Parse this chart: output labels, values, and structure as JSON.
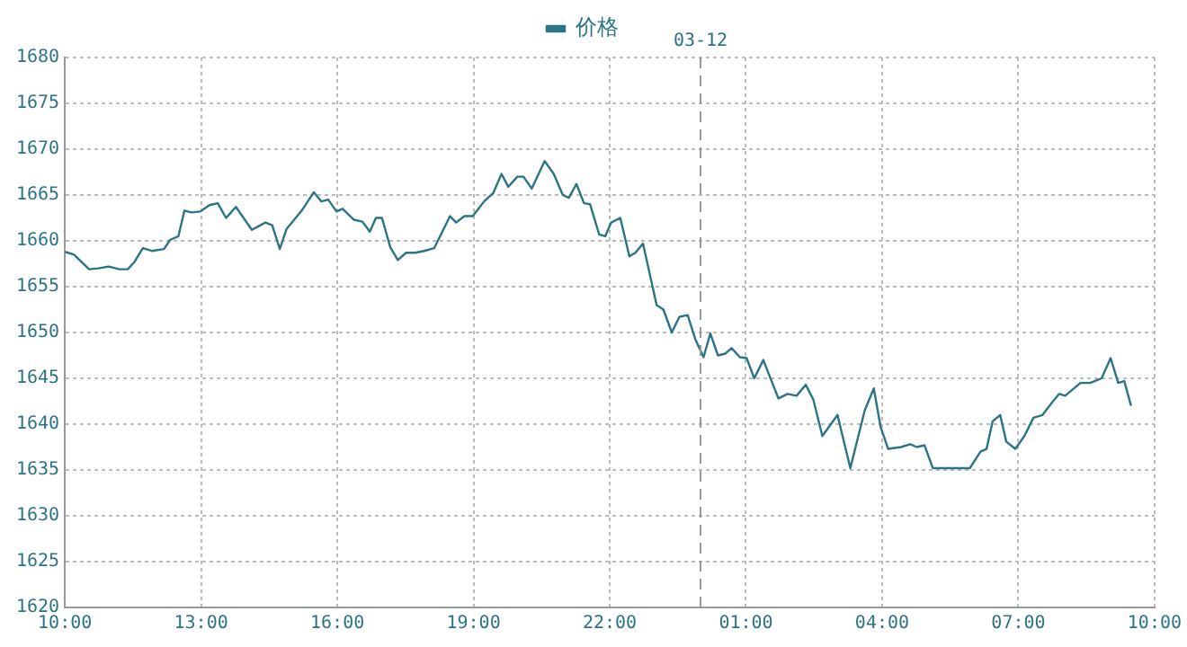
{
  "chart_data": {
    "type": "line",
    "legend": "top",
    "grid": true,
    "marker": "none",
    "line_style": "solid",
    "xlim": [
      "--03-11T10:00",
      "--03-12T10:00"
    ],
    "xticks": [
      {
        "value": "--03-11T10:00",
        "label": "10:00"
      },
      {
        "value": "--03-11T13:00",
        "label": "13:00"
      },
      {
        "value": "--03-11T16:00",
        "label": "16:00"
      },
      {
        "value": "--03-11T19:00",
        "label": "19:00"
      },
      {
        "value": "--03-11T22:00",
        "label": "22:00"
      },
      {
        "value": "--03-12T01:00",
        "label": "01:00"
      },
      {
        "value": "--03-12T04:00",
        "label": "04:00"
      },
      {
        "value": "--03-12T07:00",
        "label": "07:00"
      },
      {
        "value": "--03-12T10:00",
        "label": "10:00"
      }
    ],
    "ylim": [
      1620,
      1680
    ],
    "yticks": [
      1620,
      1625,
      1630,
      1635,
      1640,
      1645,
      1650,
      1655,
      1660,
      1665,
      1670,
      1675,
      1680
    ],
    "ref_lines": [
      {
        "axis": "x",
        "value": "--03-12",
        "label": "03-12",
        "color": "#999999",
        "line_style": "dashed"
      }
    ],
    "series": [
      {
        "name": "价格",
        "color": "#2b7488",
        "x": [
          "--03-11T10:00",
          "--03-11T10:12",
          "--03-11T10:32",
          "--03-11T10:44",
          "--03-11T10:58",
          "--03-11T11:12",
          "--03-11T11:23",
          "--03-11T11:32",
          "--03-11T11:43",
          "--03-11T11:55",
          "--03-11T12:11",
          "--03-11T12:19",
          "--03-11T12:30",
          "--03-11T12:38",
          "--03-11T12:47",
          "--03-11T12:59",
          "--03-11T13:11",
          "--03-11T13:22",
          "--03-11T13:33",
          "--03-11T13:46",
          "--03-11T14:07",
          "--03-11T14:25",
          "--03-11T14:34",
          "--03-11T14:44",
          "--03-11T14:53",
          "--03-11T15:13",
          "--03-11T15:29",
          "--03-11T15:39",
          "--03-11T15:48",
          "--03-11T15:59",
          "--03-11T16:07",
          "--03-11T16:22",
          "--03-11T16:33",
          "--03-11T16:43",
          "--03-11T16:51",
          "--03-11T16:59",
          "--03-11T17:10",
          "--03-11T17:20",
          "--03-11T17:31",
          "--03-11T17:43",
          "--03-11T17:55",
          "--03-11T18:08",
          "--03-11T18:29",
          "--03-11T18:37",
          "--03-11T18:48",
          "--03-11T18:59",
          "--03-11T19:14",
          "--03-11T19:26",
          "--03-11T19:37",
          "--03-11T19:46",
          "--03-11T19:58",
          "--03-11T20:06",
          "--03-11T20:17",
          "--03-11T20:34",
          "--03-11T20:46",
          "--03-11T20:58",
          "--03-11T21:06",
          "--03-11T21:16",
          "--03-11T21:26",
          "--03-11T21:34",
          "--03-11T21:46",
          "--03-11T21:54",
          "--03-11T22:02",
          "--03-11T22:14",
          "--03-11T22:26",
          "--03-11T22:34",
          "--03-11T22:44",
          "--03-11T23:02",
          "--03-11T23:11",
          "--03-11T23:22",
          "--03-11T23:32",
          "--03-11T23:43",
          "--03-11T23:53",
          "--03-12T00:04",
          "--03-12T00:13",
          "--03-12T00:23",
          "--03-12T00:33",
          "--03-12T00:41",
          "--03-12T00:52",
          "--03-12T01:01",
          "--03-12T01:11",
          "--03-12T01:23",
          "--03-12T01:31",
          "--03-12T01:43",
          "--03-12T01:55",
          "--03-12T02:07",
          "--03-12T02:19",
          "--03-12T02:29",
          "--03-12T02:41",
          "--03-12T03:01",
          "--03-12T03:18",
          "--03-12T03:37",
          "--03-12T03:49",
          "--03-12T03:58",
          "--03-12T04:08",
          "--03-12T04:25",
          "--03-12T04:37",
          "--03-12T04:46",
          "--03-12T04:56",
          "--03-12T05:07",
          "--03-12T05:56",
          "--03-12T06:10",
          "--03-12T06:18",
          "--03-12T06:26",
          "--03-12T06:36",
          "--03-12T06:44",
          "--03-12T06:56",
          "--03-12T07:08",
          "--03-12T07:20",
          "--03-12T07:32",
          "--03-12T07:44",
          "--03-12T07:54",
          "--03-12T08:02",
          "--03-12T08:22",
          "--03-12T08:35",
          "--03-12T08:50",
          "--03-12T09:02",
          "--03-12T09:12",
          "--03-12T09:20",
          "--03-12T09:29"
        ],
        "values": [
          1658.8,
          1658.5,
          1656.9,
          1657,
          1657.2,
          1656.9,
          1656.9,
          1657.7,
          1659.2,
          1658.9,
          1659.1,
          1660.1,
          1660.5,
          1663.3,
          1663.1,
          1663.2,
          1663.9,
          1664.1,
          1662.5,
          1663.7,
          1661.2,
          1662,
          1661.7,
          1659.1,
          1661.3,
          1663.3,
          1665.3,
          1664.3,
          1664.5,
          1663.2,
          1663.5,
          1662.3,
          1662.1,
          1661,
          1662.5,
          1662.5,
          1659.3,
          1657.9,
          1658.7,
          1658.7,
          1658.9,
          1659.2,
          1662.7,
          1662,
          1662.7,
          1662.7,
          1664.3,
          1665.2,
          1667.3,
          1665.9,
          1667,
          1667,
          1665.7,
          1668.7,
          1667.3,
          1665,
          1664.7,
          1666.2,
          1664.1,
          1664,
          1660.7,
          1660.5,
          1662,
          1662.5,
          1658.3,
          1658.7,
          1659.7,
          1653,
          1652.5,
          1650,
          1651.7,
          1651.9,
          1649.3,
          1647.3,
          1649.9,
          1647.5,
          1647.7,
          1648.3,
          1647.3,
          1647.2,
          1645,
          1647,
          1645.3,
          1642.8,
          1643.3,
          1643.1,
          1644.3,
          1642.7,
          1638.7,
          1641,
          1635.2,
          1641.5,
          1643.9,
          1639.7,
          1637.3,
          1637.5,
          1637.8,
          1637.5,
          1637.7,
          1635.2,
          1635.2,
          1637,
          1637.3,
          1640.3,
          1641,
          1638.1,
          1637.3,
          1638.7,
          1640.7,
          1641,
          1642.3,
          1643.3,
          1643.1,
          1644.5,
          1644.5,
          1645,
          1647.2,
          1644.5,
          1644.7,
          1642
        ]
      }
    ]
  }
}
